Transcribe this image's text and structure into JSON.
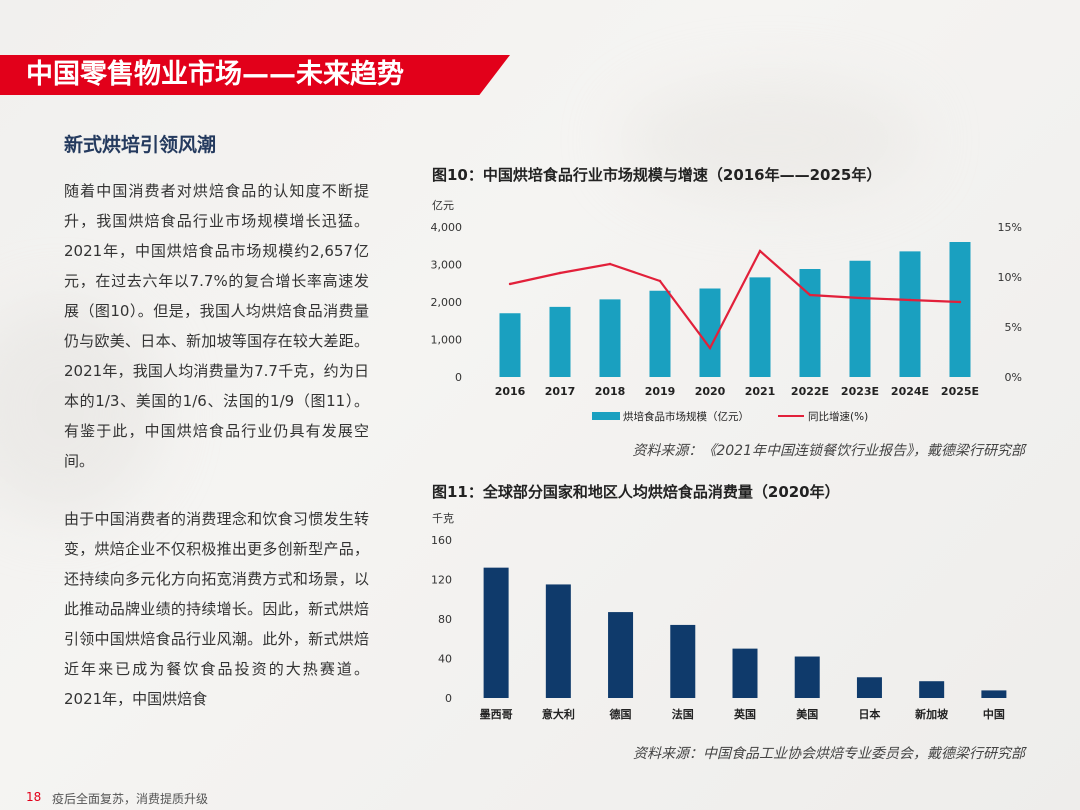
{
  "page": {
    "title": "中国零售物业市场——未来趋势",
    "subheading": "新式烘培引领风潮",
    "paragraph1": "随着中国消费者对烘焙食品的认知度不断提升，我国烘焙食品行业市场规模增长迅猛。2021年，中国烘焙食品市场规模约2,657亿元，在过去六年以7.7%的复合增长率高速发展（图10）。但是，我国人均烘焙食品消费量仍与欧美、日本、新加坡等国存在较大差距。2021年，我国人均消费量为7.7千克，约为日本的1/3、美国的1/6、法国的1/9（图11）。有鉴于此，中国烘焙食品行业仍具有发展空间。",
    "paragraph2": "由于中国消费者的消费理念和饮食习惯发生转变，烘焙企业不仅积极推出更多创新型产品，还持续向多元化方向拓宽消费方式和场景，以此推动品牌业绩的持续增长。因此，新式烘焙引领中国烘焙食品行业风潮。此外，新式烘焙近年来已成为餐饮食品投资的大热赛道。2021年，中国烘焙食",
    "fig10_title": "图10：中国烘培食品行业市场规模与增速（2016年——2025年）",
    "fig10_source": "资料来源：《2021年中国连锁餐饮行业报告》，戴德梁行研究部",
    "fig11_title": "图11：全球部分国家和地区人均烘焙食品消费量（2020年）",
    "fig11_source": "资料来源：中国食品工业协会烘焙专业委员会，戴德梁行研究部",
    "page_number": "18",
    "footer_text": "疫后全面复苏，消费提质升级"
  },
  "colors": {
    "brand_red": "#e2001a",
    "bar_teal": "#1aa0c0",
    "line_red": "#e2203a",
    "bar_navy": "#0f3a6b"
  },
  "chart_data": [
    {
      "type": "bar",
      "title": "图10：中国烘培食品行业市场规模与增速（2016年——2025年）",
      "ylabel": "亿元",
      "ylim": [
        0,
        4000
      ],
      "yticks": [
        "0",
        "1,000",
        "2,000",
        "3,000",
        "4,000"
      ],
      "y2lim": [
        0,
        15
      ],
      "y2ticks": [
        "0%",
        "5%",
        "10%",
        "15%"
      ],
      "categories": [
        "2016",
        "2017",
        "2018",
        "2019",
        "2020",
        "2021",
        "2022E",
        "2023E",
        "2024E",
        "2025E"
      ],
      "series": [
        {
          "name": "烘培食品市场规模（亿元）",
          "type": "bar",
          "axis": "left",
          "values": [
            1700,
            1870,
            2070,
            2300,
            2360,
            2657,
            2880,
            3100,
            3350,
            3600
          ]
        },
        {
          "name": "同比增速(%)",
          "type": "line",
          "axis": "right",
          "values": [
            9.3,
            10.4,
            11.3,
            9.6,
            2.9,
            12.6,
            8.2,
            7.9,
            7.7,
            7.5
          ]
        }
      ],
      "legend": "bottom"
    },
    {
      "type": "bar",
      "title": "图11：全球部分国家和地区人均烘焙食品消费量（2020年）",
      "ylabel": "千克",
      "ylim": [
        0,
        160
      ],
      "yticks": [
        "0",
        "40",
        "80",
        "120",
        "160"
      ],
      "categories": [
        "墨西哥",
        "意大利",
        "德国",
        "法国",
        "英国",
        "美国",
        "日本",
        "新加坡",
        "中国"
      ],
      "values": [
        132,
        115,
        87,
        74,
        50,
        42,
        21,
        17,
        7.7
      ]
    }
  ]
}
